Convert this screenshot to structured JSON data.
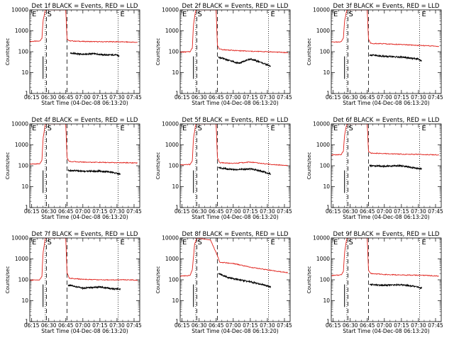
{
  "figure": {
    "title_template": "Det {det} BLACK = Events, RED = LLD",
    "xlabel": "Start Time (04-Dec-08 06:13:20)",
    "ylabel": "Counts/sec",
    "x_ticks": [
      "06:15",
      "06:30",
      "06:45",
      "07:00",
      "07:15",
      "07:30",
      "07:45"
    ],
    "y_ticks": [
      "1",
      "10",
      "100",
      "1000",
      "10000"
    ],
    "markers": {
      "start": "E",
      "saa": "S",
      "end": "E"
    },
    "colors": {
      "events": "#000000",
      "lld": "#e0201a",
      "frame": "#000000"
    }
  },
  "chart_data": [
    {
      "type": "line",
      "title": "Det 1f BLACK = Events, RED = LLD",
      "xlabel": "Start Time (04-Dec-08 06:13:20)",
      "ylabel": "Counts/sec",
      "xlim": [
        "06:13:20",
        "07:50:00"
      ],
      "ylim": [
        1,
        10000
      ],
      "yscale": "log",
      "vlines": {
        "dotted": [
          "06:27",
          "07:31"
        ],
        "dashed": [
          "06:28",
          "06:46"
        ]
      },
      "series": [
        {
          "key": "lld",
          "x": [
            "06:13:20",
            "06:22",
            "06:24",
            "06:25",
            "06:27",
            "06:28",
            "06:45",
            "06:46",
            "06:48",
            "07:00",
            "07:15",
            "07:30",
            "07:40",
            "07:48"
          ],
          "y": [
            310,
            320,
            450,
            3000,
            10000,
            10000,
            10000,
            420,
            330,
            310,
            300,
            300,
            290,
            280
          ]
        },
        {
          "key": "events",
          "x": [
            "06:49",
            "07:00",
            "07:10",
            "07:20",
            "07:30",
            "07:32"
          ],
          "y": [
            85,
            75,
            80,
            70,
            70,
            60
          ]
        }
      ]
    },
    {
      "type": "line",
      "title": "Det 2f BLACK = Events, RED = LLD",
      "xlabel": "Start Time (04-Dec-08 06:13:20)",
      "ylabel": "Counts/sec",
      "xlim": [
        "06:13:20",
        "07:50:00"
      ],
      "ylim": [
        1,
        10000
      ],
      "yscale": "log",
      "vlines": {
        "dotted": [
          "06:27",
          "07:31"
        ],
        "dashed": [
          "06:28",
          "06:46"
        ]
      },
      "series": [
        {
          "key": "lld",
          "x": [
            "06:13:20",
            "06:22",
            "06:24",
            "06:25",
            "06:27",
            "06:28",
            "06:45",
            "06:46",
            "06:48",
            "07:00",
            "07:15",
            "07:30",
            "07:40",
            "07:48"
          ],
          "y": [
            95,
            100,
            150,
            2000,
            10000,
            10000,
            10000,
            200,
            130,
            115,
            105,
            100,
            95,
            90
          ]
        },
        {
          "key": "events",
          "x": [
            "06:47",
            "06:55",
            "07:05",
            "07:15",
            "07:25",
            "07:33"
          ],
          "y": [
            55,
            40,
            28,
            45,
            30,
            20
          ]
        }
      ]
    },
    {
      "type": "line",
      "title": "Det 3f BLACK = Events, RED = LLD",
      "xlabel": "Start Time (04-Dec-08 06:13:20)",
      "ylabel": "Counts/sec",
      "xlim": [
        "06:13:20",
        "07:50:00"
      ],
      "ylim": [
        1,
        10000
      ],
      "yscale": "log",
      "vlines": {
        "dotted": [
          "06:27",
          "07:31"
        ],
        "dashed": [
          "06:28",
          "06:46"
        ]
      },
      "series": [
        {
          "key": "lld",
          "x": [
            "06:13:20",
            "06:22",
            "06:24",
            "06:25",
            "06:27",
            "06:28",
            "06:45",
            "06:46",
            "06:48",
            "07:00",
            "07:15",
            "07:30",
            "07:40",
            "07:48"
          ],
          "y": [
            290,
            300,
            450,
            3000,
            10000,
            10000,
            10000,
            400,
            250,
            240,
            220,
            200,
            190,
            180
          ]
        },
        {
          "key": "events",
          "x": [
            "06:47",
            "07:00",
            "07:15",
            "07:30",
            "07:33"
          ],
          "y": [
            70,
            60,
            55,
            45,
            35
          ]
        }
      ]
    },
    {
      "type": "line",
      "title": "Det 4f BLACK = Events, RED = LLD",
      "xlabel": "Start Time (04-Dec-08 06:13:20)",
      "ylabel": "Counts/sec",
      "xlim": [
        "06:13:20",
        "07:50:00"
      ],
      "ylim": [
        1,
        10000
      ],
      "yscale": "log",
      "vlines": {
        "dotted": [
          "06:27",
          "07:31"
        ],
        "dashed": [
          "06:28",
          "06:46"
        ]
      },
      "series": [
        {
          "key": "lld",
          "x": [
            "06:13:20",
            "06:22",
            "06:24",
            "06:25",
            "06:27",
            "06:28",
            "06:45",
            "06:46",
            "06:48",
            "07:00",
            "07:15",
            "07:30",
            "07:40",
            "07:48"
          ],
          "y": [
            120,
            125,
            180,
            2000,
            10000,
            10000,
            10000,
            250,
            160,
            150,
            145,
            140,
            140,
            135
          ]
        },
        {
          "key": "events",
          "x": [
            "06:47",
            "07:00",
            "07:15",
            "07:25",
            "07:33"
          ],
          "y": [
            60,
            55,
            55,
            50,
            40
          ]
        }
      ]
    },
    {
      "type": "line",
      "title": "Det 5f BLACK = Events, RED = LLD",
      "xlabel": "Start Time (04-Dec-08 06:13:20)",
      "ylabel": "Counts/sec",
      "xlim": [
        "06:13:20",
        "07:50:00"
      ],
      "ylim": [
        1,
        10000
      ],
      "yscale": "log",
      "vlines": {
        "dotted": [
          "06:27",
          "07:31"
        ],
        "dashed": [
          "06:28",
          "06:46"
        ]
      },
      "series": [
        {
          "key": "lld",
          "x": [
            "06:13:20",
            "06:22",
            "06:24",
            "06:25",
            "06:27",
            "06:28",
            "06:45",
            "06:46",
            "06:48",
            "07:00",
            "07:15",
            "07:30",
            "07:40",
            "07:48"
          ],
          "y": [
            110,
            115,
            170,
            2000,
            10000,
            10000,
            10000,
            250,
            140,
            130,
            150,
            120,
            110,
            105
          ]
        },
        {
          "key": "events",
          "x": [
            "06:47",
            "07:00",
            "07:15",
            "07:25",
            "07:33"
          ],
          "y": [
            80,
            65,
            70,
            55,
            40
          ]
        }
      ]
    },
    {
      "type": "line",
      "title": "Det 6f BLACK = Events, RED = LLD",
      "xlabel": "Start Time (04-Dec-08 06:13:20)",
      "ylabel": "Counts/sec",
      "xlim": [
        "06:13:20",
        "07:50:00"
      ],
      "ylim": [
        1,
        10000
      ],
      "yscale": "log",
      "vlines": {
        "dotted": [
          "06:27",
          "07:31"
        ],
        "dashed": [
          "06:28",
          "06:46"
        ]
      },
      "series": [
        {
          "key": "lld",
          "x": [
            "06:13:20",
            "06:22",
            "06:24",
            "06:25",
            "06:27",
            "06:28",
            "06:45",
            "06:46",
            "06:48",
            "07:00",
            "07:15",
            "07:30",
            "07:40",
            "07:48"
          ],
          "y": [
            330,
            340,
            500,
            3000,
            10000,
            10000,
            10000,
            500,
            400,
            380,
            360,
            350,
            340,
            330
          ]
        },
        {
          "key": "events",
          "x": [
            "06:47",
            "07:00",
            "07:15",
            "07:25",
            "07:33"
          ],
          "y": [
            100,
            95,
            100,
            80,
            70
          ]
        }
      ]
    },
    {
      "type": "line",
      "title": "Det 7f BLACK = Events, RED = LLD",
      "xlabel": "Start Time (04-Dec-08 06:13:20)",
      "ylabel": "Counts/sec",
      "xlim": [
        "06:13:20",
        "07:50:00"
      ],
      "ylim": [
        1,
        10000
      ],
      "yscale": "log",
      "vlines": {
        "dotted": [
          "06:27",
          "07:31"
        ],
        "dashed": [
          "06:28",
          "06:46"
        ]
      },
      "series": [
        {
          "key": "lld",
          "x": [
            "06:13:20",
            "06:22",
            "06:24",
            "06:25",
            "06:27",
            "06:28",
            "06:45",
            "06:46",
            "06:48",
            "07:00",
            "07:15",
            "07:30",
            "07:40",
            "07:48"
          ],
          "y": [
            95,
            100,
            150,
            2000,
            10000,
            10000,
            10000,
            220,
            120,
            105,
            100,
            100,
            100,
            95
          ]
        },
        {
          "key": "events",
          "x": [
            "06:47",
            "07:00",
            "07:15",
            "07:25",
            "07:33"
          ],
          "y": [
            55,
            40,
            45,
            38,
            35
          ]
        }
      ]
    },
    {
      "type": "line",
      "title": "Det 8f BLACK = Events, RED = LLD",
      "xlabel": "Start Time (04-Dec-08 06:13:20)",
      "ylabel": "Counts/sec",
      "xlim": [
        "06:13:20",
        "07:50:00"
      ],
      "ylim": [
        1,
        10000
      ],
      "yscale": "log",
      "vlines": {
        "dotted": [
          "06:27",
          "07:31"
        ],
        "dashed": [
          "06:28",
          "06:46"
        ]
      },
      "series": [
        {
          "key": "lld",
          "x": [
            "06:13:20",
            "06:22",
            "06:24",
            "06:26",
            "06:28",
            "06:40",
            "06:46",
            "06:48",
            "07:00",
            "07:15",
            "07:30",
            "07:40",
            "07:48"
          ],
          "y": [
            150,
            160,
            300,
            5000,
            10000,
            8000,
            1500,
            700,
            600,
            400,
            300,
            250,
            220
          ]
        },
        {
          "key": "events",
          "x": [
            "06:47",
            "06:55",
            "07:05",
            "07:15",
            "07:25",
            "07:33"
          ],
          "y": [
            200,
            130,
            100,
            80,
            60,
            45
          ]
        }
      ]
    },
    {
      "type": "line",
      "title": "Det 9f BLACK = Events, RED = LLD",
      "xlabel": "Start Time (04-Dec-08 06:13:20)",
      "ylabel": "Counts/sec",
      "xlim": [
        "06:13:20",
        "07:50:00"
      ],
      "ylim": [
        1,
        10000
      ],
      "yscale": "log",
      "vlines": {
        "dotted": [
          "06:27",
          "07:31"
        ],
        "dashed": [
          "06:28",
          "06:46"
        ]
      },
      "series": [
        {
          "key": "lld",
          "x": [
            "06:13:20",
            "06:22",
            "06:24",
            "06:25",
            "06:27",
            "06:28",
            "06:45",
            "06:46",
            "06:48",
            "07:00",
            "07:15",
            "07:30",
            "07:40",
            "07:48"
          ],
          "y": [
            160,
            170,
            250,
            2000,
            10000,
            10000,
            10000,
            300,
            200,
            180,
            170,
            165,
            160,
            150
          ]
        },
        {
          "key": "events",
          "x": [
            "06:47",
            "07:00",
            "07:15",
            "07:25",
            "07:33"
          ],
          "y": [
            60,
            55,
            58,
            50,
            40
          ]
        }
      ]
    }
  ]
}
